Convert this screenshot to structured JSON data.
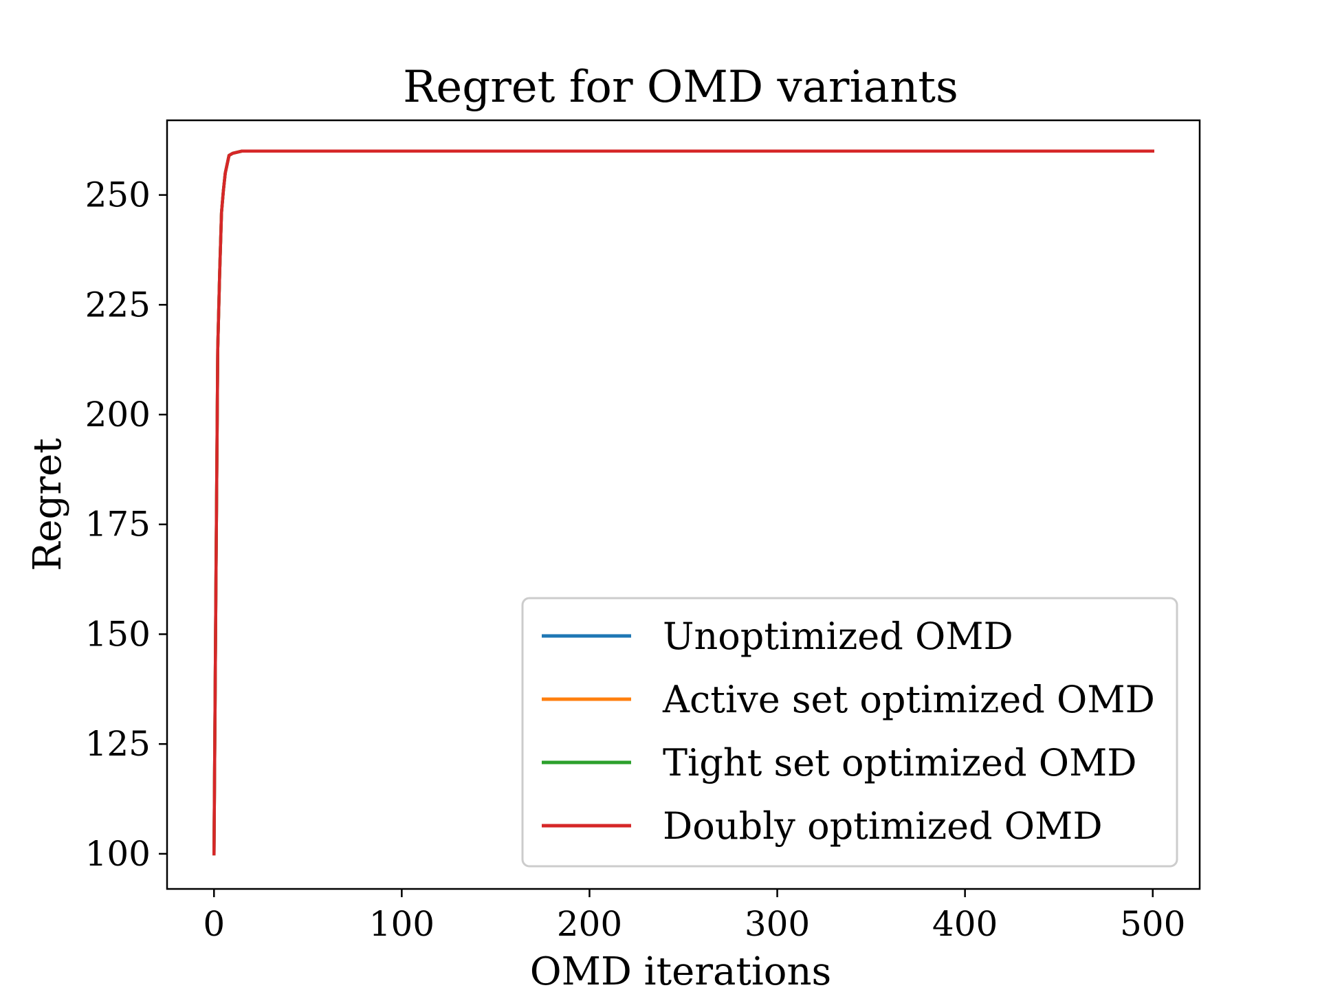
{
  "chart_data": {
    "type": "line",
    "title": "Regret for OMD variants",
    "xlabel": "OMD iterations",
    "ylabel": "Regret",
    "xlim": [
      -25,
      525
    ],
    "ylim": [
      92,
      267
    ],
    "xticks": [
      0,
      100,
      200,
      300,
      400,
      500
    ],
    "yticks": [
      100,
      125,
      150,
      175,
      200,
      225,
      250
    ],
    "grid": false,
    "legend_position": "lower-right",
    "series": [
      {
        "name": "Unoptimized OMD",
        "color": "#1f77b4",
        "x": [
          0,
          1,
          2,
          3,
          4,
          5,
          6,
          8,
          10,
          15,
          20,
          50,
          100,
          200,
          300,
          400,
          500
        ],
        "y": [
          100,
          160,
          215,
          232,
          246,
          251,
          255,
          259,
          259.5,
          260,
          260,
          260,
          260,
          260,
          260,
          260,
          260
        ]
      },
      {
        "name": "Active set optimized OMD",
        "color": "#ff7f0e",
        "x": [
          0,
          1,
          2,
          3,
          4,
          5,
          6,
          8,
          10,
          15,
          20,
          50,
          100,
          200,
          300,
          400,
          500
        ],
        "y": [
          100,
          160,
          215,
          232,
          246,
          251,
          255,
          259,
          259.5,
          260,
          260,
          260,
          260,
          260,
          260,
          260,
          260
        ]
      },
      {
        "name": "Tight set optimized OMD",
        "color": "#2ca02c",
        "x": [
          0,
          1,
          2,
          3,
          4,
          5,
          6,
          8,
          10,
          15,
          20,
          50,
          100,
          200,
          300,
          400,
          500
        ],
        "y": [
          100,
          160,
          215,
          232,
          246,
          251,
          255,
          259,
          259.5,
          260,
          260,
          260,
          260,
          260,
          260,
          260,
          260
        ]
      },
      {
        "name": "Doubly optimized OMD",
        "color": "#d62728",
        "x": [
          0,
          1,
          2,
          3,
          4,
          5,
          6,
          8,
          10,
          15,
          20,
          50,
          100,
          200,
          300,
          400,
          500
        ],
        "y": [
          100,
          160,
          215,
          232,
          246,
          251,
          255,
          259,
          259.5,
          260,
          260,
          260,
          260,
          260,
          260,
          260,
          260
        ]
      }
    ]
  }
}
